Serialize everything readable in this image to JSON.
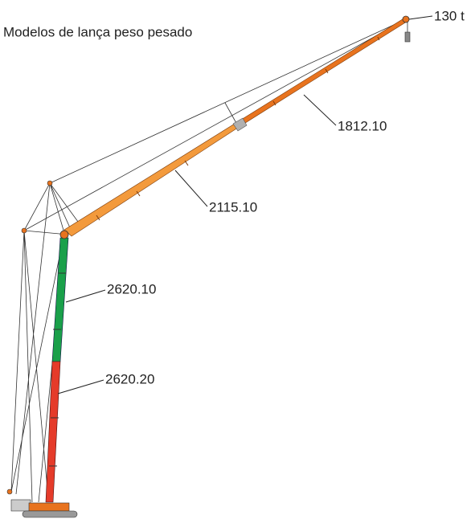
{
  "title": "Modelos de lança peso pesado",
  "callouts": [
    {
      "text": "130 t"
    },
    {
      "text": "1812.10"
    },
    {
      "text": "2115.10"
    },
    {
      "text": "2620.10"
    },
    {
      "text": "2620.20"
    }
  ]
}
